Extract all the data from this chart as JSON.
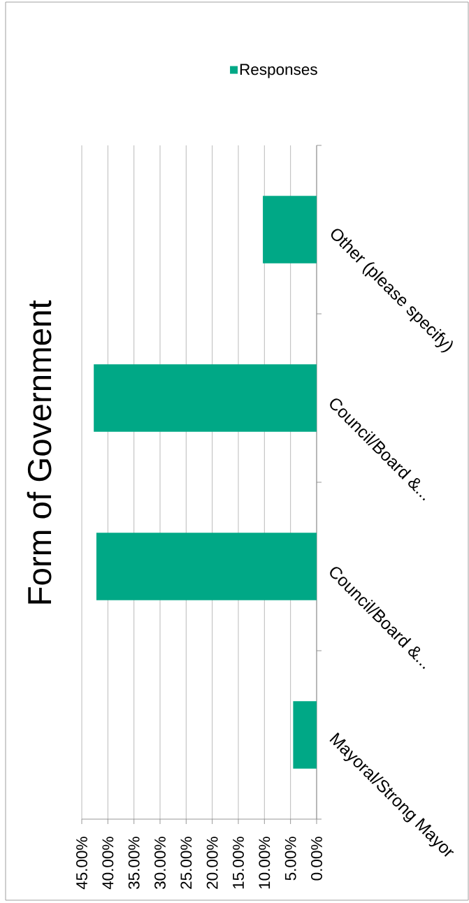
{
  "chart_data": {
    "type": "bar",
    "orientation": "horizontal",
    "title": "Form of Government",
    "categories": [
      "Other (please specify)",
      "Council/Board &...",
      "Council/Board &...",
      "Mayoral/Strong Mayor"
    ],
    "series": [
      {
        "name": "Responses",
        "color": "#00a886",
        "values": [
          10.3,
          42.7,
          42.2,
          4.5
        ]
      }
    ],
    "xlim": [
      45,
      0
    ],
    "xticks": [
      {
        "value": 0,
        "label": "0.00%"
      },
      {
        "value": 5,
        "label": "5.00%"
      },
      {
        "value": 10,
        "label": "10.00%"
      },
      {
        "value": 15,
        "label": "15.00%"
      },
      {
        "value": 20,
        "label": "20.00%"
      },
      {
        "value": 25,
        "label": "25.00%"
      },
      {
        "value": 30,
        "label": "30.00%"
      },
      {
        "value": 35,
        "label": "35.00%"
      },
      {
        "value": 40,
        "label": "40.00%"
      },
      {
        "value": 45,
        "label": "45.00%"
      }
    ],
    "grid": "x",
    "legend": "top right"
  }
}
